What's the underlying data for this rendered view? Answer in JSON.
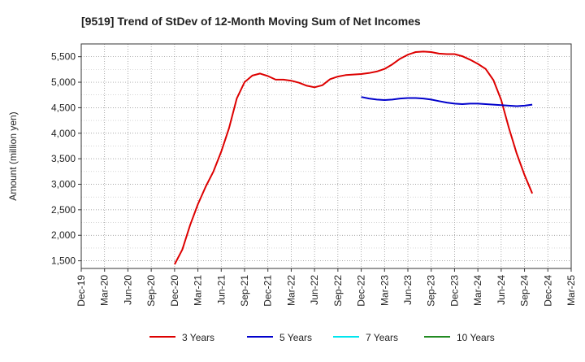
{
  "chart_data": {
    "type": "line",
    "title": "[9519]  Trend of StDev of 12-Month Moving Sum of Net Incomes",
    "xlabel": "",
    "ylabel": "Amount (million yen)",
    "x_ticks": [
      "Dec-19",
      "Mar-20",
      "Jun-20",
      "Sep-20",
      "Dec-20",
      "Mar-21",
      "Jun-21",
      "Sep-21",
      "Dec-21",
      "Mar-22",
      "Jun-22",
      "Sep-22",
      "Dec-22",
      "Mar-23",
      "Jun-23",
      "Sep-23",
      "Dec-23",
      "Mar-24",
      "Jun-24",
      "Sep-24",
      "Dec-24",
      "Mar-25"
    ],
    "y_ticks": [
      "1,500",
      "2,000",
      "2,500",
      "3,000",
      "3,500",
      "4,000",
      "4,500",
      "5,000",
      "5,500"
    ],
    "ylim": [
      1350,
      5750
    ],
    "grid": true,
    "legend_position": "bottom",
    "series": [
      {
        "name": "3 Years",
        "color": "#dd0000",
        "values": [
          {
            "x": "2020-12",
            "y": 1430
          },
          {
            "x": "2021-01",
            "y": 1720
          },
          {
            "x": "2021-02",
            "y": 2200
          },
          {
            "x": "2021-03",
            "y": 2610
          },
          {
            "x": "2021-04",
            "y": 2950
          },
          {
            "x": "2021-05",
            "y": 3250
          },
          {
            "x": "2021-06",
            "y": 3640
          },
          {
            "x": "2021-07",
            "y": 4100
          },
          {
            "x": "2021-08",
            "y": 4680
          },
          {
            "x": "2021-09",
            "y": 5000
          },
          {
            "x": "2021-10",
            "y": 5130
          },
          {
            "x": "2021-11",
            "y": 5170
          },
          {
            "x": "2021-12",
            "y": 5120
          },
          {
            "x": "2022-01",
            "y": 5050
          },
          {
            "x": "2022-02",
            "y": 5050
          },
          {
            "x": "2022-03",
            "y": 5030
          },
          {
            "x": "2022-04",
            "y": 4990
          },
          {
            "x": "2022-05",
            "y": 4930
          },
          {
            "x": "2022-06",
            "y": 4900
          },
          {
            "x": "2022-07",
            "y": 4940
          },
          {
            "x": "2022-08",
            "y": 5060
          },
          {
            "x": "2022-09",
            "y": 5110
          },
          {
            "x": "2022-10",
            "y": 5140
          },
          {
            "x": "2022-11",
            "y": 5150
          },
          {
            "x": "2022-12",
            "y": 5160
          },
          {
            "x": "2023-01",
            "y": 5180
          },
          {
            "x": "2023-02",
            "y": 5210
          },
          {
            "x": "2023-03",
            "y": 5260
          },
          {
            "x": "2023-04",
            "y": 5350
          },
          {
            "x": "2023-05",
            "y": 5460
          },
          {
            "x": "2023-06",
            "y": 5540
          },
          {
            "x": "2023-07",
            "y": 5590
          },
          {
            "x": "2023-08",
            "y": 5600
          },
          {
            "x": "2023-09",
            "y": 5590
          },
          {
            "x": "2023-10",
            "y": 5560
          },
          {
            "x": "2023-11",
            "y": 5550
          },
          {
            "x": "2023-12",
            "y": 5550
          },
          {
            "x": "2024-01",
            "y": 5510
          },
          {
            "x": "2024-02",
            "y": 5440
          },
          {
            "x": "2024-03",
            "y": 5360
          },
          {
            "x": "2024-04",
            "y": 5260
          },
          {
            "x": "2024-05",
            "y": 5040
          },
          {
            "x": "2024-06",
            "y": 4650
          },
          {
            "x": "2024-07",
            "y": 4100
          },
          {
            "x": "2024-08",
            "y": 3600
          },
          {
            "x": "2024-09",
            "y": 3180
          },
          {
            "x": "2024-10",
            "y": 2820
          }
        ]
      },
      {
        "name": "5 Years",
        "color": "#0000cc",
        "values": [
          {
            "x": "2022-12",
            "y": 4710
          },
          {
            "x": "2023-01",
            "y": 4680
          },
          {
            "x": "2023-02",
            "y": 4660
          },
          {
            "x": "2023-03",
            "y": 4650
          },
          {
            "x": "2023-04",
            "y": 4660
          },
          {
            "x": "2023-05",
            "y": 4680
          },
          {
            "x": "2023-06",
            "y": 4690
          },
          {
            "x": "2023-07",
            "y": 4690
          },
          {
            "x": "2023-08",
            "y": 4680
          },
          {
            "x": "2023-09",
            "y": 4660
          },
          {
            "x": "2023-10",
            "y": 4630
          },
          {
            "x": "2023-11",
            "y": 4600
          },
          {
            "x": "2023-12",
            "y": 4580
          },
          {
            "x": "2024-01",
            "y": 4570
          },
          {
            "x": "2024-02",
            "y": 4580
          },
          {
            "x": "2024-03",
            "y": 4580
          },
          {
            "x": "2024-04",
            "y": 4570
          },
          {
            "x": "2024-05",
            "y": 4560
          },
          {
            "x": "2024-06",
            "y": 4550
          },
          {
            "x": "2024-07",
            "y": 4540
          },
          {
            "x": "2024-08",
            "y": 4530
          },
          {
            "x": "2024-09",
            "y": 4540
          },
          {
            "x": "2024-10",
            "y": 4560
          }
        ]
      },
      {
        "name": "7 Years",
        "color": "#00e5ee",
        "values": []
      },
      {
        "name": "10 Years",
        "color": "#228b22",
        "values": []
      }
    ]
  }
}
